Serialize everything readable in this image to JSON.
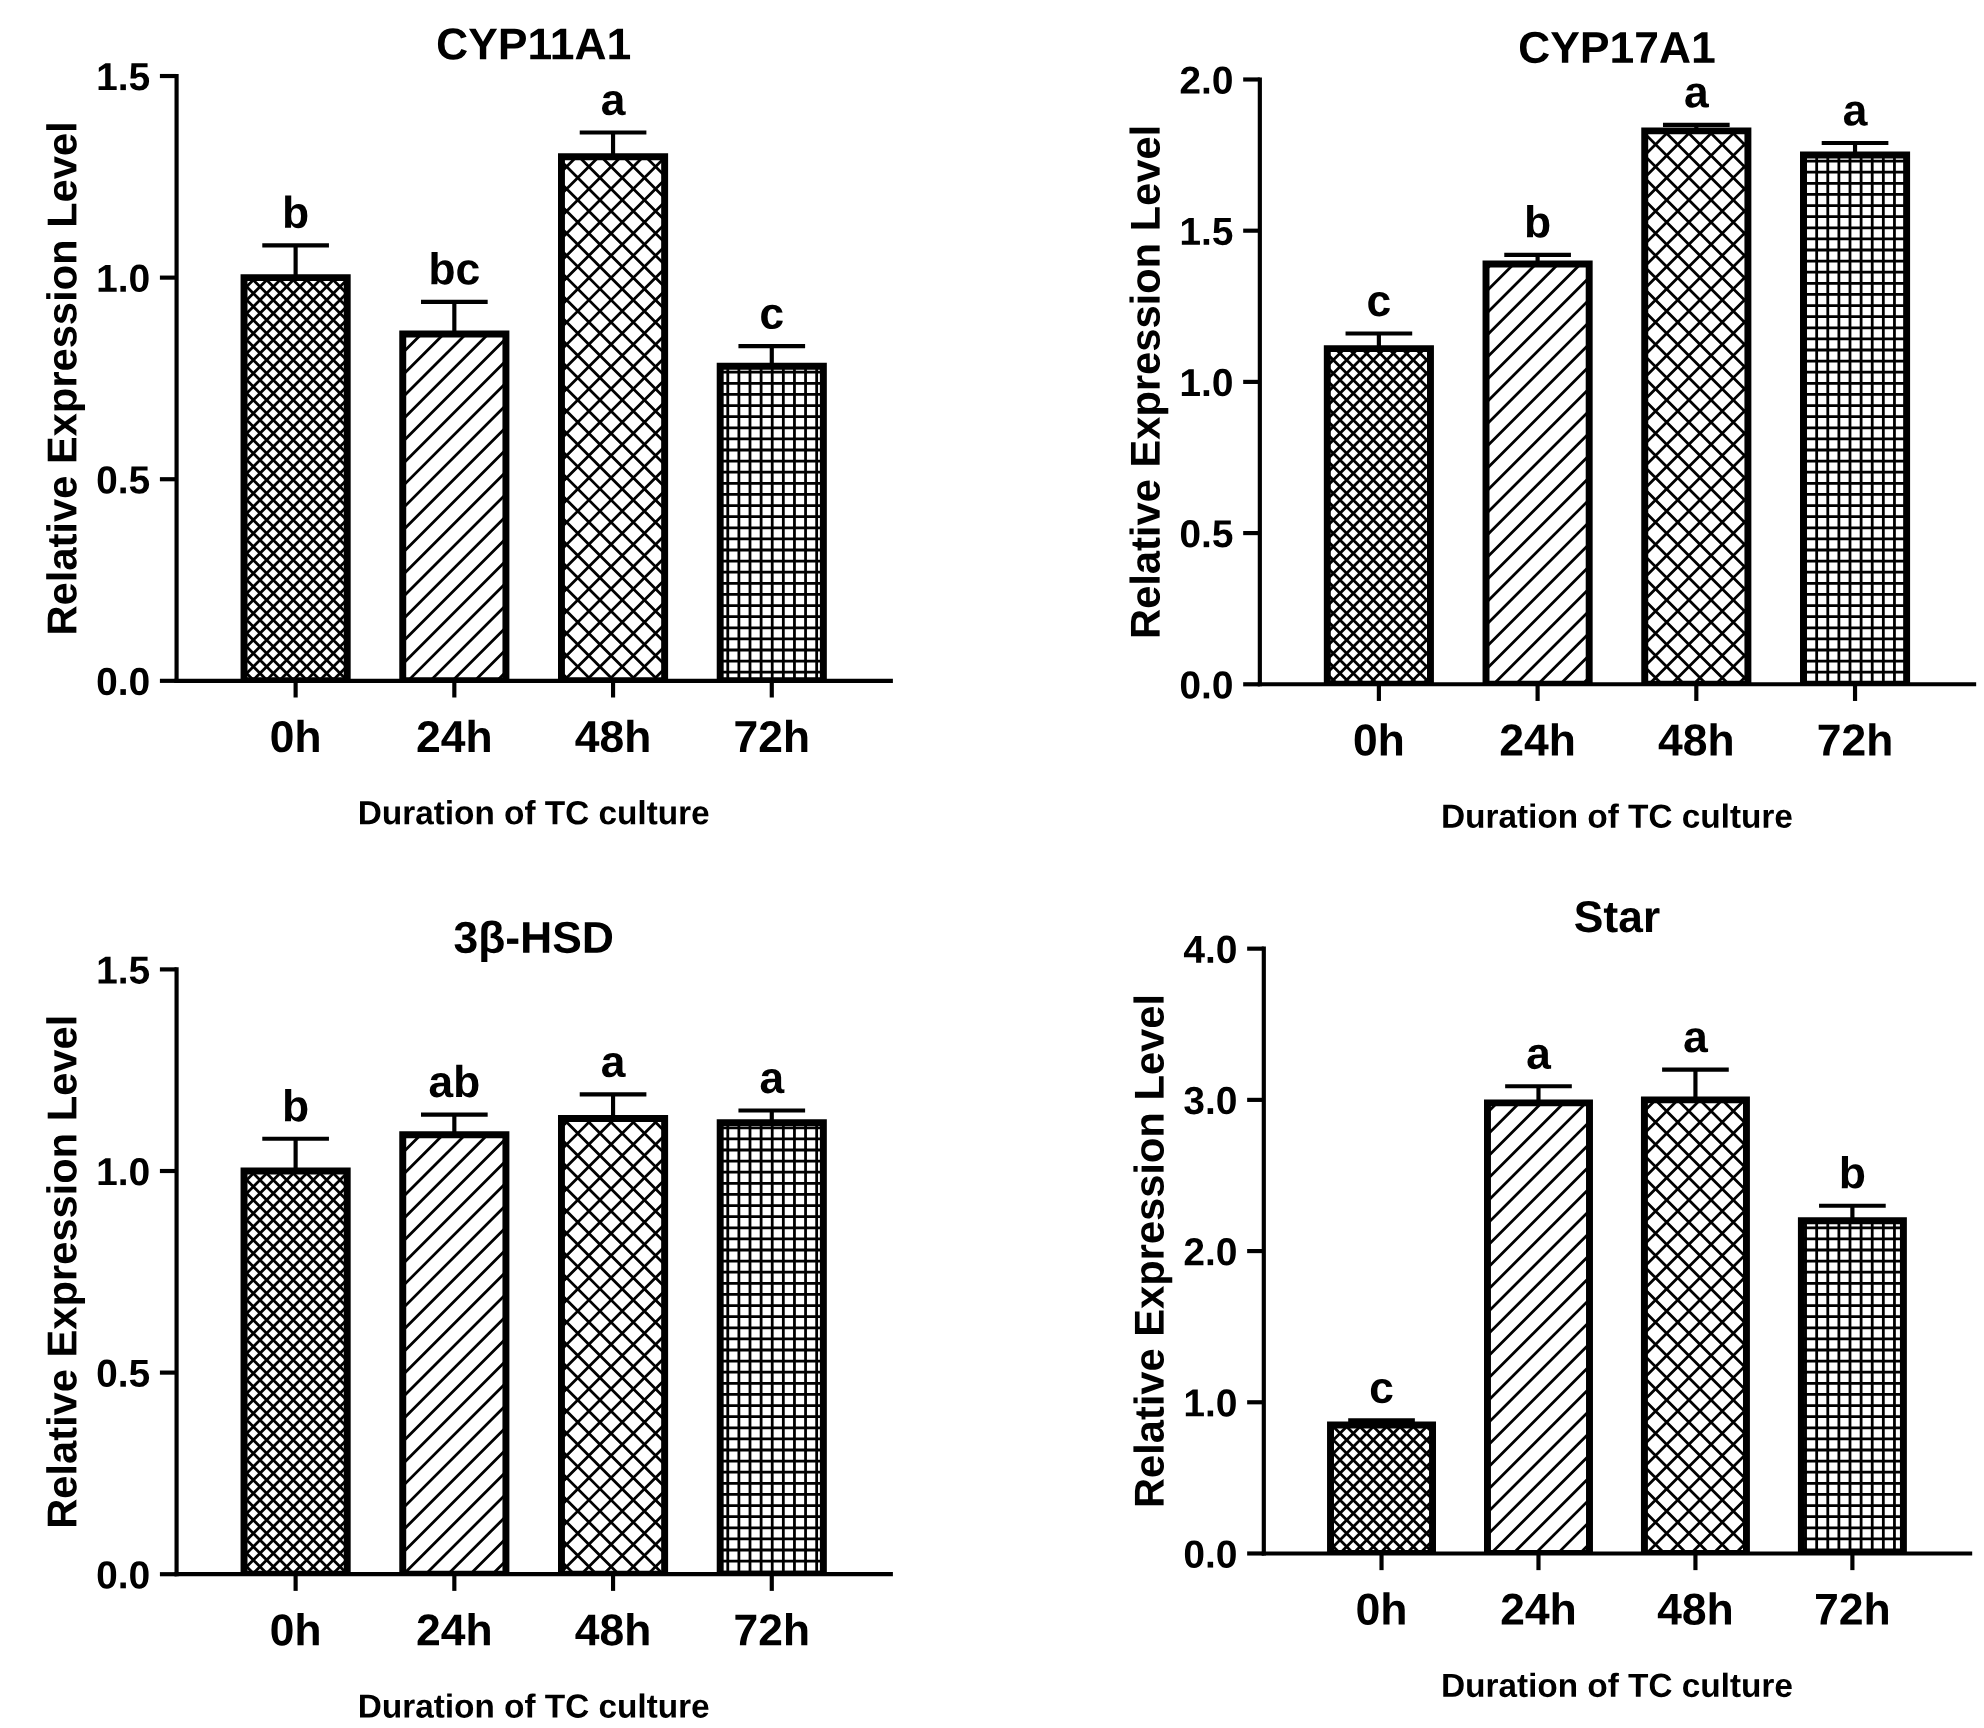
{
  "chart_data": [
    {
      "type": "bar",
      "title": "CYP11A1",
      "xlabel": "Duration of TC culture",
      "ylabel": "Relative Expression Level",
      "categories": [
        "0h",
        "24h",
        "48h",
        "72h"
      ],
      "values": [
        1.0,
        0.86,
        1.3,
        0.78
      ],
      "errors": [
        [
          1.0,
          1.08
        ],
        [
          0.86,
          0.94
        ],
        [
          1.3,
          1.36
        ],
        [
          0.78,
          0.83
        ]
      ],
      "ylim": [
        0,
        1.5
      ],
      "yticks": [
        {
          "value": 0,
          "label": "0.0"
        },
        {
          "value": 0.5,
          "label": "0.5"
        },
        {
          "value": 1.0,
          "label": "1.0"
        },
        {
          "value": 1.5,
          "label": "1.5"
        }
      ],
      "annotations": [
        {
          "text": "b",
          "x": "0h",
          "y": 1.08
        },
        {
          "text": "bc",
          "x": "24h",
          "y": 0.94
        },
        {
          "text": "a",
          "x": "48h",
          "y": 1.36
        },
        {
          "text": "c",
          "x": "72h",
          "y": 0.83
        }
      ]
    },
    {
      "type": "bar",
      "title": "CYP17A1",
      "xlabel": "Duration of TC culture",
      "ylabel": "Relative Expression Level",
      "categories": [
        "0h",
        "24h",
        "48h",
        "72h"
      ],
      "values": [
        1.11,
        1.39,
        1.83,
        1.75
      ],
      "errors": [
        [
          1.11,
          1.16
        ],
        [
          1.39,
          1.42
        ],
        [
          1.83,
          1.85
        ],
        [
          1.75,
          1.79
        ]
      ],
      "ylim": [
        0,
        2.0
      ],
      "yticks": [
        {
          "value": 0,
          "label": "0.0"
        },
        {
          "value": 0.5,
          "label": "0.5"
        },
        {
          "value": 1.0,
          "label": "1.0"
        },
        {
          "value": 1.5,
          "label": "1.5"
        },
        {
          "value": 2.0,
          "label": "2.0"
        }
      ],
      "annotations": [
        {
          "text": "c",
          "x": "0h",
          "y": 1.16
        },
        {
          "text": "b",
          "x": "24h",
          "y": 1.42
        },
        {
          "text": "a",
          "x": "48h",
          "y": 1.85
        },
        {
          "text": "a",
          "x": "72h",
          "y": 1.79
        }
      ]
    },
    {
      "type": "bar",
      "title": "3β-HSD",
      "xlabel": "Duration of TC culture",
      "ylabel": "Relative Expression Level",
      "categories": [
        "0h",
        "24h",
        "48h",
        "72h"
      ],
      "values": [
        1.0,
        1.09,
        1.13,
        1.12
      ],
      "errors": [
        [
          1.0,
          1.08
        ],
        [
          1.09,
          1.14
        ],
        [
          1.13,
          1.19
        ],
        [
          1.12,
          1.15
        ]
      ],
      "ylim": [
        0,
        1.5
      ],
      "yticks": [
        {
          "value": 0,
          "label": "0.0"
        },
        {
          "value": 0.5,
          "label": "0.5"
        },
        {
          "value": 1.0,
          "label": "1.0"
        },
        {
          "value": 1.5,
          "label": "1.5"
        }
      ],
      "annotations": [
        {
          "text": "b",
          "x": "0h",
          "y": 1.08
        },
        {
          "text": "ab",
          "x": "24h",
          "y": 1.14
        },
        {
          "text": "a",
          "x": "48h",
          "y": 1.19
        },
        {
          "text": "a",
          "x": "72h",
          "y": 1.15
        }
      ]
    },
    {
      "type": "bar",
      "title": "Star",
      "xlabel": "Duration of TC culture",
      "ylabel": "Relative Expression Level",
      "categories": [
        "0h",
        "24h",
        "48h",
        "72h"
      ],
      "values": [
        0.85,
        2.98,
        3.0,
        2.2
      ],
      "errors": [
        [
          0.85,
          0.88
        ],
        [
          2.98,
          3.09
        ],
        [
          3.0,
          3.2
        ],
        [
          2.2,
          2.3
        ]
      ],
      "ylim": [
        0,
        4.0
      ],
      "yticks": [
        {
          "value": 0,
          "label": "0.0"
        },
        {
          "value": 1.0,
          "label": "1.0"
        },
        {
          "value": 2.0,
          "label": "2.0"
        },
        {
          "value": 3.0,
          "label": "3.0"
        },
        {
          "value": 4.0,
          "label": "4.0"
        }
      ],
      "annotations": [
        {
          "text": "c",
          "x": "0h",
          "y": 0.88
        },
        {
          "text": "a",
          "x": "24h",
          "y": 3.09
        },
        {
          "text": "a",
          "x": "48h",
          "y": 3.2
        },
        {
          "text": "b",
          "x": "72h",
          "y": 2.3
        }
      ]
    }
  ]
}
